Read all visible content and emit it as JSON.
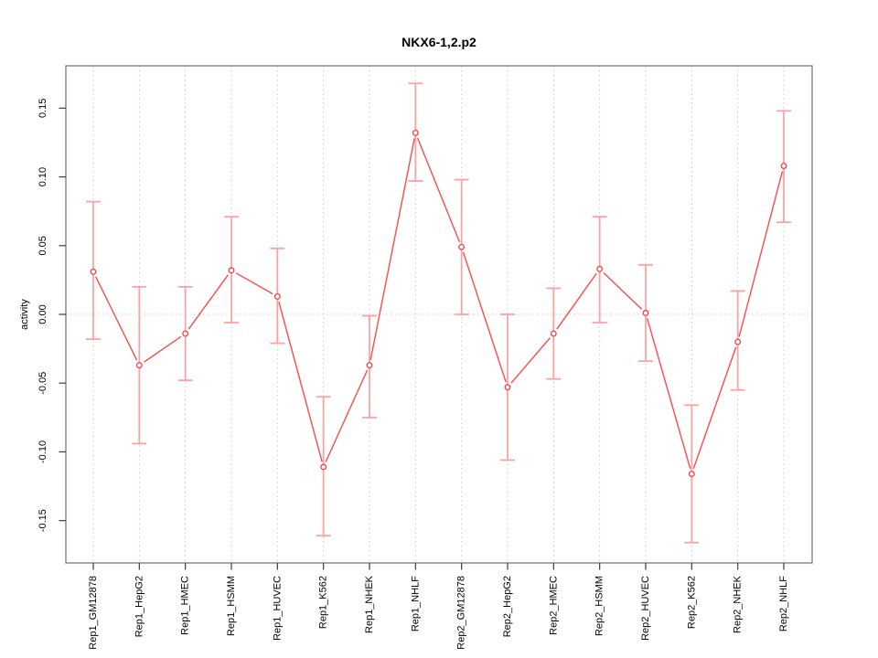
{
  "chart_data": {
    "type": "line",
    "title": "NKX6-1,2.p2",
    "ylabel": "activity",
    "xlabel": "",
    "categories": [
      "Rep1_GM12878",
      "Rep1_HepG2",
      "Rep1_HMEC",
      "Rep1_HSMM",
      "Rep1_HUVEC",
      "Rep1_K562",
      "Rep1_NHEK",
      "Rep1_NHLF",
      "Rep2_GM12878",
      "Rep2_HepG2",
      "Rep2_HMEC",
      "Rep2_HSMM",
      "Rep2_HUVEC",
      "Rep2_K562",
      "Rep2_NHEK",
      "Rep2_NHLF"
    ],
    "series": [
      {
        "name": "activity",
        "values": [
          0.031,
          -0.037,
          -0.014,
          0.032,
          0.013,
          -0.111,
          -0.037,
          0.132,
          0.049,
          -0.053,
          -0.014,
          0.033,
          0.001,
          -0.116,
          -0.02,
          0.108
        ],
        "upper": [
          0.082,
          0.02,
          0.02,
          0.071,
          0.048,
          -0.06,
          -0.001,
          0.168,
          0.098,
          0.0,
          0.019,
          0.071,
          0.036,
          -0.066,
          0.017,
          0.148
        ],
        "lower": [
          -0.018,
          -0.094,
          -0.048,
          -0.006,
          -0.021,
          -0.161,
          -0.075,
          0.097,
          0.0,
          -0.106,
          -0.047,
          -0.006,
          -0.034,
          -0.166,
          -0.055,
          0.067
        ]
      }
    ],
    "y_tick_labels": [
      "-0.15",
      "-0.10",
      "-0.05",
      "0.00",
      "0.05",
      "0.10",
      "0.15"
    ],
    "y_tick_values": [
      -0.15,
      -0.1,
      -0.05,
      0.0,
      0.05,
      0.1,
      0.15
    ],
    "ylim": [
      -0.1808,
      0.1808
    ],
    "legend": "none",
    "grid": "vertical dotted line at each category; dotted horizontal line at zero",
    "marker": "open-circle",
    "colors": {
      "line": "#fb4b4b",
      "error_bar": "#fba3a3",
      "marker": "#f93d3d",
      "grid": "#d6d6d6",
      "box": "#6f6f6f",
      "tick": "#3c3c3c",
      "text": "#000000",
      "background": "#ffffff"
    }
  }
}
